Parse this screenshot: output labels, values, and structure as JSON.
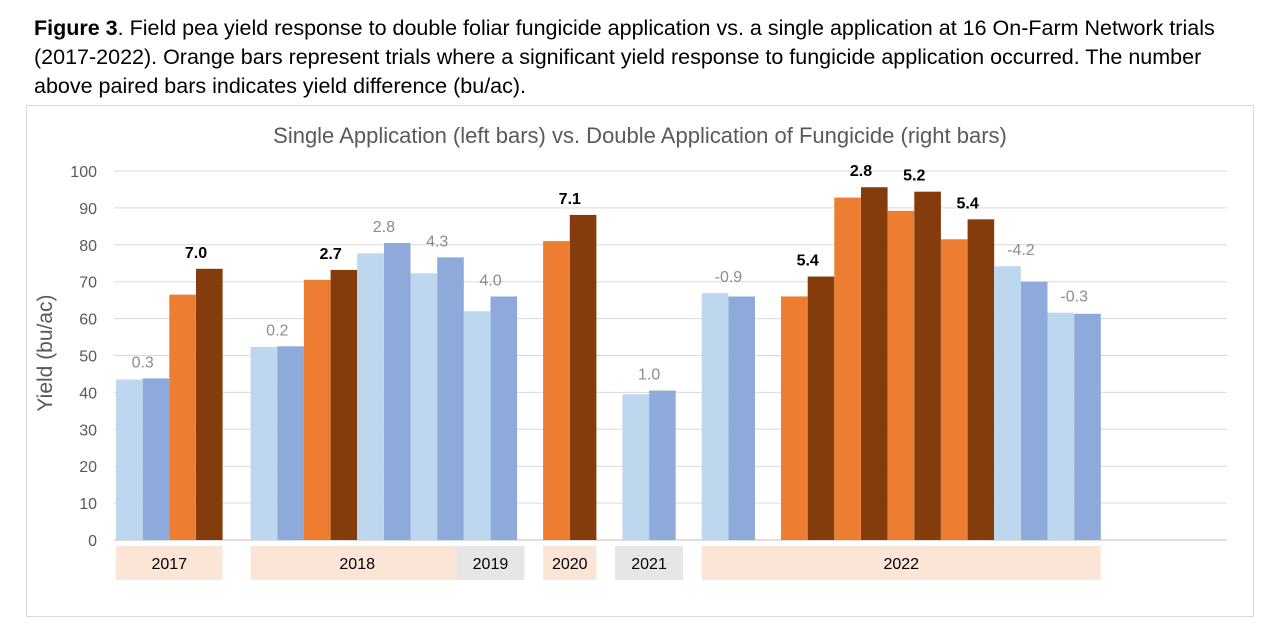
{
  "caption": {
    "label": "Figure 3",
    "text": ". Field pea yield response to double foliar fungicide application vs. a single application at 16 On-Farm Network trials (2017-2022).  Orange bars represent trials where a significant yield response to fungicide application occurred. The number above paired bars indicates yield difference (bu/ac)."
  },
  "chart_data": {
    "type": "bar",
    "title": "Single Application (left bars) vs. Double Application of Fungicide (right bars)",
    "ylabel": "Yield (bu/ac)",
    "xlabel": "",
    "ylim": [
      0,
      100
    ],
    "yticks": [
      0,
      10,
      20,
      30,
      40,
      50,
      60,
      70,
      80,
      90,
      100
    ],
    "grid": true,
    "colors": {
      "single_not_significant": "#bdd7ee",
      "double_not_significant": "#8eaadb",
      "single_significant": "#ed7d31",
      "double_significant": "#843c0c",
      "year_box_significant": "#fbe5d6",
      "year_box_not_significant": "#e7e6e6"
    },
    "trials": [
      {
        "year": "2017",
        "single": 43.5,
        "double": 43.8,
        "difference": "0.3",
        "significant": false
      },
      {
        "year": "2017",
        "single": 66.5,
        "double": 73.5,
        "difference": "7.0",
        "significant": true
      },
      {
        "year": "2018",
        "single": 52.3,
        "double": 52.5,
        "difference": "0.2",
        "significant": false
      },
      {
        "year": "2018",
        "single": 70.5,
        "double": 73.2,
        "difference": "2.7",
        "significant": true
      },
      {
        "year": "2018",
        "single": 77.7,
        "double": 80.5,
        "difference": "2.8",
        "significant": false
      },
      {
        "year": "2018",
        "single": 72.3,
        "double": 76.6,
        "difference": "4.3",
        "significant": false
      },
      {
        "year": "2019",
        "single": 62.0,
        "double": 66.0,
        "difference": "4.0",
        "significant": false
      },
      {
        "year": "2020",
        "single": 81.0,
        "double": 88.1,
        "difference": "7.1",
        "significant": true
      },
      {
        "year": "2021",
        "single": 39.5,
        "double": 40.5,
        "difference": "1.0",
        "significant": false
      },
      {
        "year": "2022",
        "single": 66.9,
        "double": 66.0,
        "difference": "-0.9",
        "significant": false
      },
      {
        "year": "2022",
        "single": 66.0,
        "double": 71.4,
        "difference": "5.4",
        "significant": true
      },
      {
        "year": "2022",
        "single": 92.8,
        "double": 95.6,
        "difference": "2.8",
        "significant": true
      },
      {
        "year": "2022",
        "single": 89.2,
        "double": 94.4,
        "difference": "5.2",
        "significant": true
      },
      {
        "year": "2022",
        "single": 81.5,
        "double": 86.9,
        "difference": "5.4",
        "significant": true
      },
      {
        "year": "2022",
        "single": 74.2,
        "double": 70.0,
        "difference": "-4.2",
        "significant": false
      },
      {
        "year": "2022",
        "single": 61.6,
        "double": 61.3,
        "difference": "-0.3",
        "significant": false
      }
    ],
    "year_groups": [
      {
        "year": "2017",
        "significant_trials": true
      },
      {
        "year": "2018",
        "significant_trials": true
      },
      {
        "year": "2019",
        "significant_trials": false
      },
      {
        "year": "2020",
        "significant_trials": true
      },
      {
        "year": "2021",
        "significant_trials": false
      },
      {
        "year": "2022",
        "significant_trials": true
      }
    ]
  }
}
